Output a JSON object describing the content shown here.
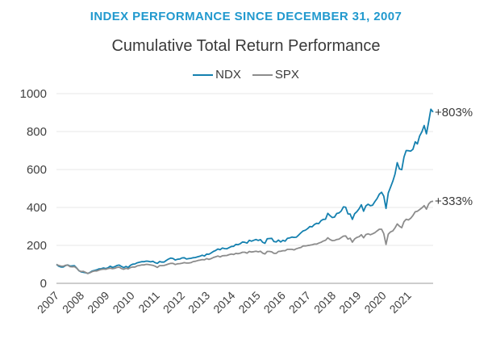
{
  "header": {
    "eyebrow": "INDEX PERFORMANCE SINCE DECEMBER 31, 2007",
    "title": "Cumulative Total Return Performance"
  },
  "colors": {
    "eyebrow_blue": "#2199CE",
    "ndx_line": "#1480AF",
    "spx_line": "#8C8C8C",
    "grid": "#E7E7E7",
    "axis": "#9B9B9B",
    "tick_text": "#404040",
    "annotation_text": "#3A3A3A"
  },
  "legend": {
    "items": [
      {
        "label": "NDX",
        "color": "#1480AF"
      },
      {
        "label": "SPX",
        "color": "#8C8C8C"
      }
    ]
  },
  "chart_data": {
    "type": "line",
    "title": "Cumulative Total Return Performance",
    "subtitle": "INDEX PERFORMANCE SINCE DECEMBER 31, 2007",
    "xlabel": "",
    "ylabel": "",
    "x_unit": "months since Dec 31, 2007 (Dec 31, 2007 = 100)",
    "x_tick_labels": [
      "2007",
      "2008",
      "2009",
      "2010",
      "2011",
      "2012",
      "2013",
      "2014",
      "2015",
      "2016",
      "2017",
      "2018",
      "2019",
      "2020",
      "2021"
    ],
    "y_ticks": [
      0,
      200,
      400,
      600,
      800,
      1000
    ],
    "ylim": [
      0,
      1000
    ],
    "grid": true,
    "legend_position": "top",
    "series": [
      {
        "name": "NDX",
        "color": "#1480AF",
        "end_label": "+803%",
        "end_value": 903,
        "values": [
          100,
          90,
          86,
          86,
          93,
          97,
          91,
          92,
          93,
          81,
          67,
          60,
          58,
          56,
          52,
          58,
          65,
          68,
          71,
          76,
          77,
          81,
          78,
          82,
          90,
          84,
          88,
          94,
          96,
          89,
          83,
          89,
          84,
          95,
          101,
          102,
          108,
          111,
          114,
          114,
          117,
          116,
          113,
          116,
          109,
          105,
          115,
          112,
          112,
          121,
          128,
          133,
          131,
          123,
          127,
          128,
          134,
          135,
          128,
          130,
          132,
          135,
          136,
          140,
          143,
          148,
          144,
          154,
          153,
          160,
          168,
          173,
          181,
          177,
          186,
          183,
          182,
          188,
          194,
          195,
          205,
          204,
          209,
          218,
          216,
          212,
          227,
          222,
          227,
          231,
          226,
          230,
          216,
          211,
          235,
          236,
          237,
          220,
          218,
          228,
          218,
          227,
          222,
          237,
          239,
          244,
          242,
          243,
          254,
          266,
          276,
          280,
          288,
          299,
          298,
          310,
          316,
          315,
          330,
          337,
          338,
          369,
          357,
          347,
          349,
          368,
          371,
          381,
          403,
          401,
          366,
          365,
          337,
          367,
          378,
          393,
          414,
          380,
          408,
          417,
          409,
          412,
          430,
          447,
          470,
          480,
          460,
          395,
          476,
          507,
          538,
          575,
          636,
          603,
          599,
          666,
          700,
          699,
          697,
          707,
          746,
          735,
          777,
          799,
          832,
          788,
          850,
          918,
          903
        ]
      },
      {
        "name": "SPX",
        "color": "#8C8C8C",
        "end_label": "+333%",
        "end_value": 433,
        "values": [
          100,
          94,
          91,
          90,
          95,
          96,
          88,
          87,
          88,
          80,
          67,
          62,
          63,
          58,
          52,
          56,
          62,
          65,
          65,
          70,
          73,
          75,
          74,
          78,
          80,
          77,
          79,
          84,
          85,
          78,
          74,
          79,
          76,
          83,
          86,
          86,
          92,
          94,
          97,
          97,
          100,
          99,
          97,
          95,
          90,
          84,
          93,
          93,
          94,
          98,
          102,
          105,
          105,
          99,
          103,
          104,
          106,
          109,
          107,
          107,
          109,
          115,
          116,
          120,
          122,
          125,
          124,
          130,
          126,
          130,
          136,
          140,
          144,
          139,
          145,
          146,
          147,
          151,
          154,
          152,
          158,
          156,
          159,
          164,
          164,
          159,
          168,
          165,
          167,
          169,
          166,
          169,
          159,
          155,
          168,
          168,
          166,
          158,
          158,
          168,
          169,
          172,
          172,
          179,
          179,
          179,
          176,
          182,
          186,
          189,
          197,
          197,
          199,
          201,
          203,
          207,
          207,
          212,
          216,
          223,
          227,
          240,
          231,
          225,
          226,
          231,
          233,
          241,
          249,
          250,
          233,
          238,
          217,
          234,
          242,
          246,
          256,
          240,
          257,
          261,
          256,
          261,
          267,
          276,
          285,
          285,
          262,
          205,
          259,
          271,
          276,
          292,
          313,
          301,
          293,
          325,
          338,
          334,
          343,
          358,
          377,
          380,
          389,
          398,
          410,
          391,
          418,
          430,
          433
        ]
      }
    ]
  }
}
